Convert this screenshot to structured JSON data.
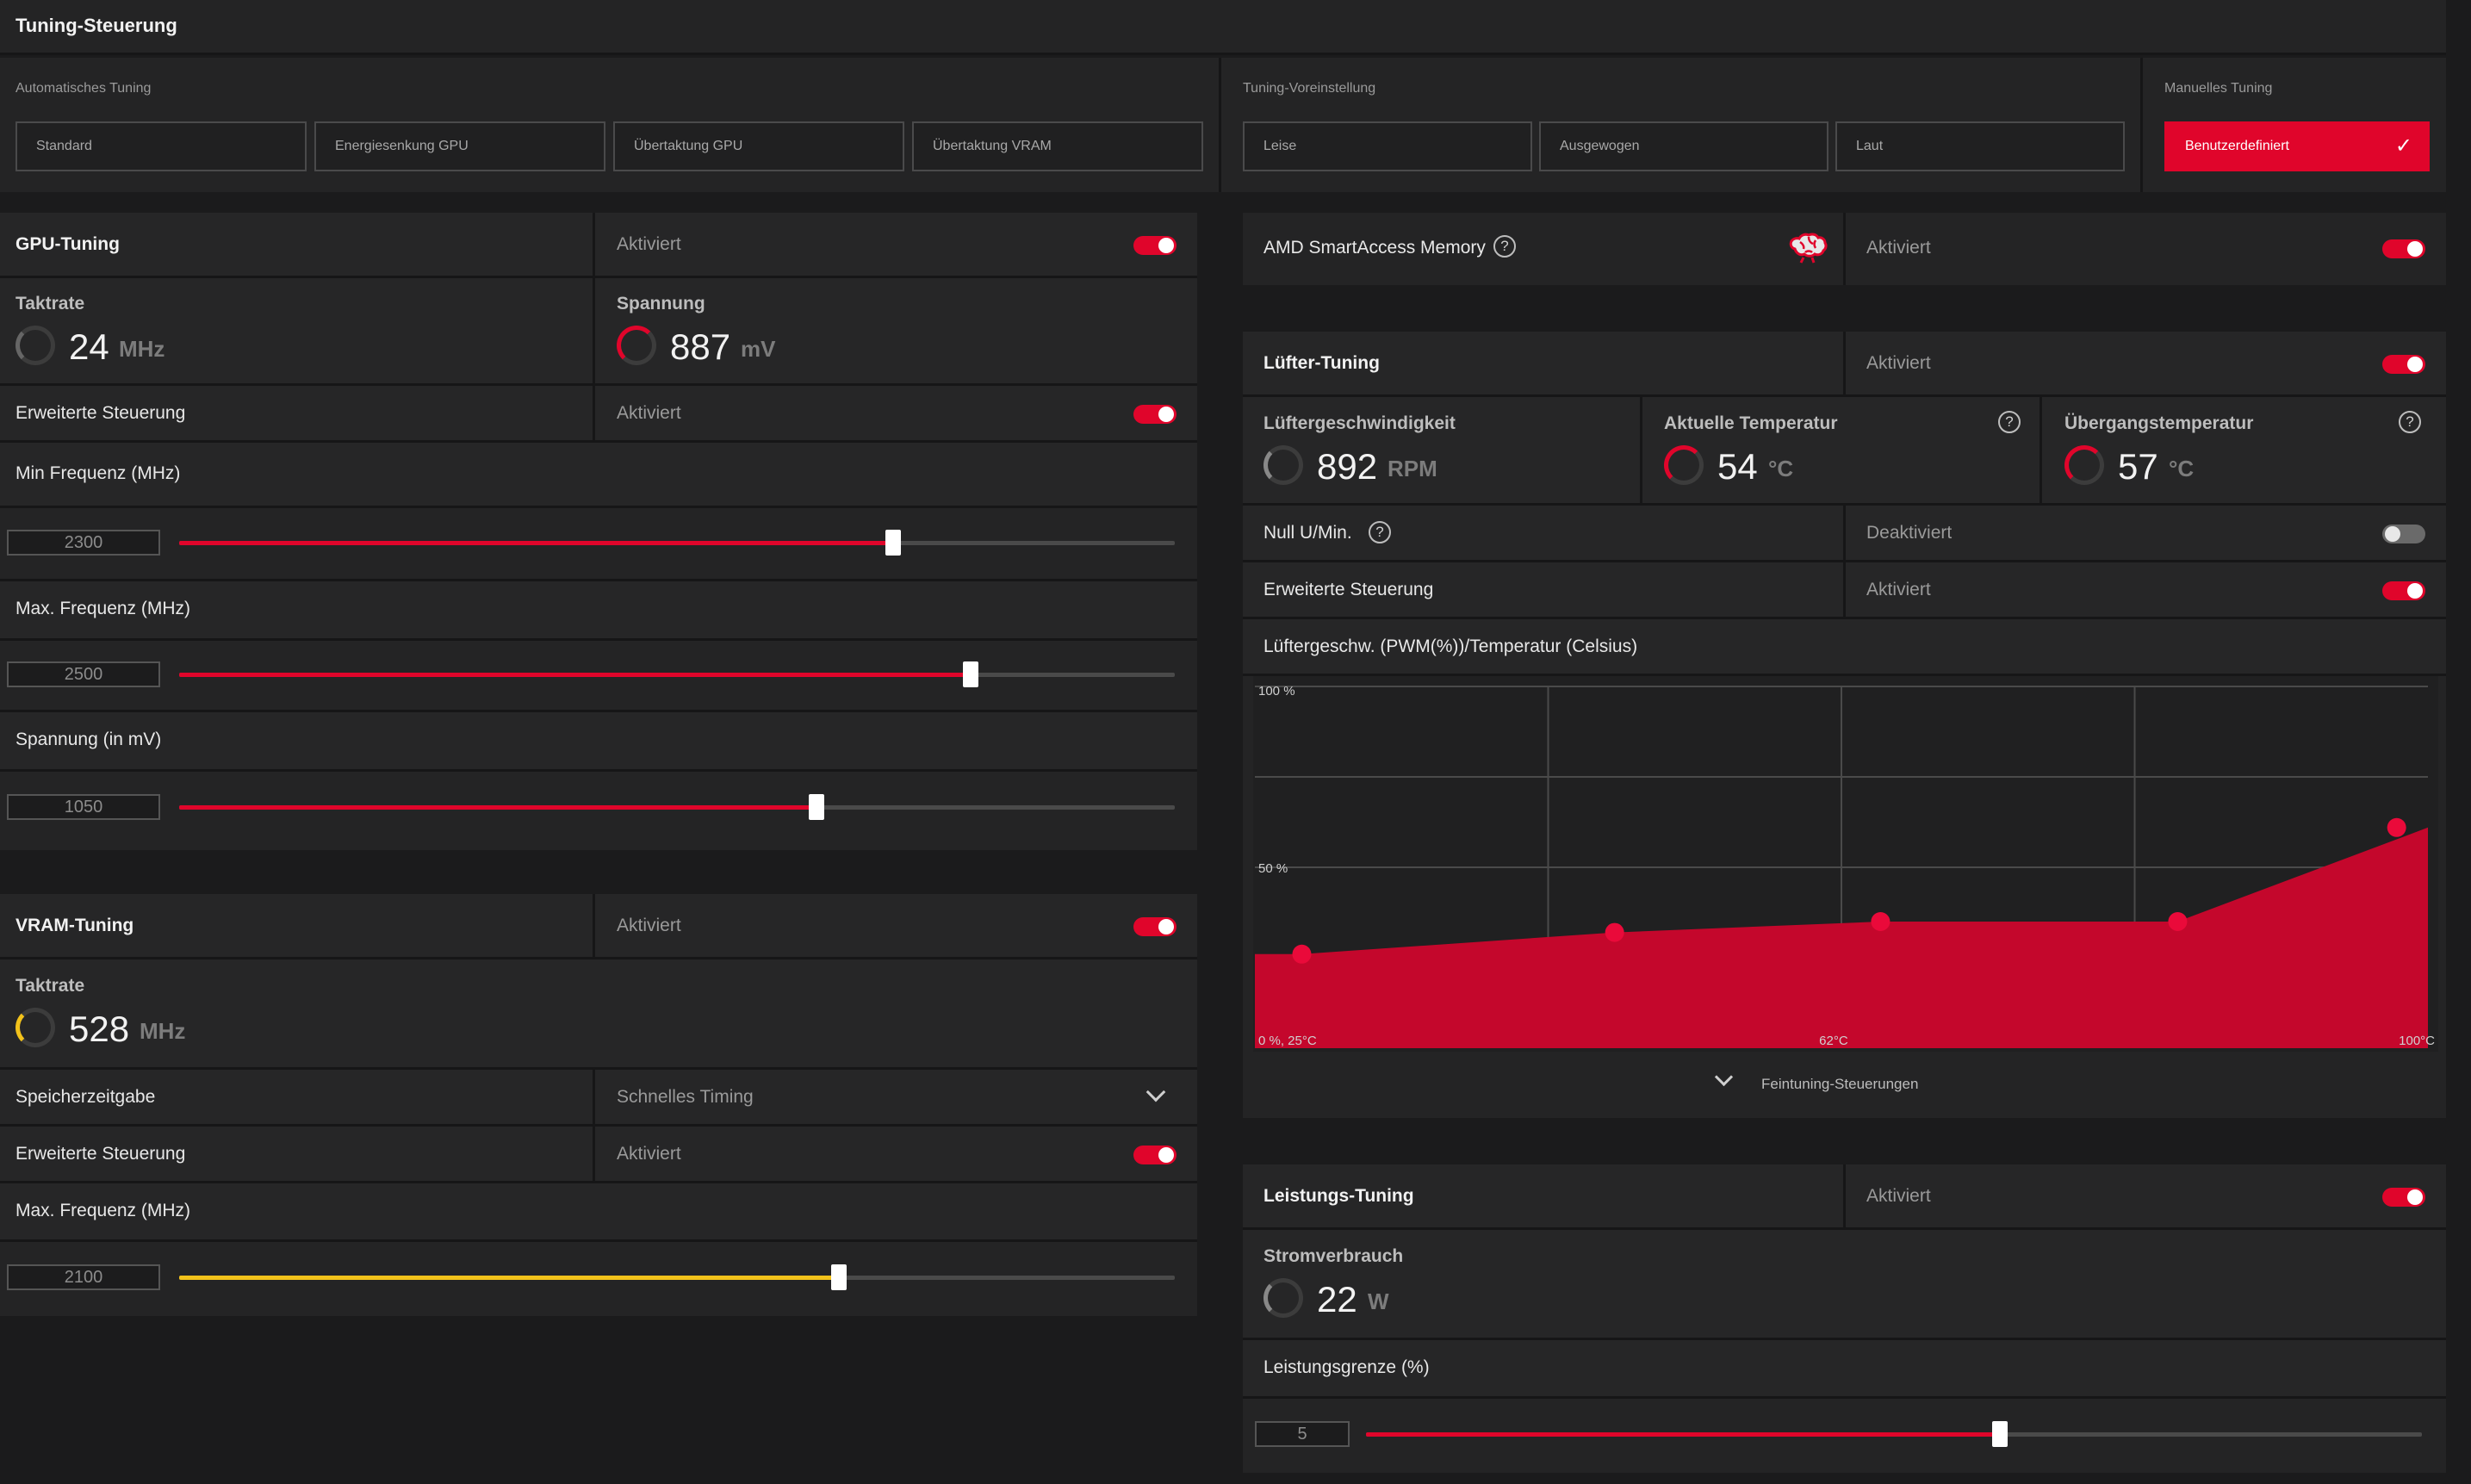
{
  "title": "Tuning-Steuerung",
  "presets": {
    "auto_header": "Automatisches Tuning",
    "auto": [
      "Standard",
      "Energiesenkung GPU",
      "Übertaktung GPU",
      "Übertaktung VRAM"
    ],
    "preset_header": "Tuning-Voreinstellung",
    "preset": [
      "Leise",
      "Ausgewogen",
      "Laut"
    ],
    "manual_header": "Manuelles Tuning",
    "manual": "Benutzerdefiniert"
  },
  "gpu": {
    "title": "GPU-Tuning",
    "status": "Aktiviert",
    "clock_label": "Taktrate",
    "clock_value": "24",
    "clock_unit": "MHz",
    "voltage_label": "Spannung",
    "voltage_value": "887",
    "voltage_unit": "mV",
    "advanced_label": "Erweiterte Steuerung",
    "advanced_status": "Aktiviert",
    "min_freq_label": "Min Frequenz (MHz)",
    "min_freq_value": "2300",
    "min_freq_fraction": 0.717,
    "max_freq_label": "Max. Frequenz (MHz)",
    "max_freq_value": "2500",
    "max_freq_fraction": 0.795,
    "volt_label": "Spannung (in mV)",
    "volt_value": "1050",
    "volt_fraction": 0.64
  },
  "vram": {
    "title": "VRAM-Tuning",
    "status": "Aktiviert",
    "clock_label": "Taktrate",
    "clock_value": "528",
    "clock_unit": "MHz",
    "timing_label": "Speicherzeitgabe",
    "timing_value": "Schnelles Timing",
    "advanced_label": "Erweiterte Steuerung",
    "advanced_status": "Aktiviert",
    "max_freq_label": "Max. Frequenz (MHz)",
    "max_freq_value": "2100",
    "max_freq_fraction": 0.663
  },
  "sam": {
    "label": "AMD SmartAccess Memory",
    "status": "Aktiviert"
  },
  "fan": {
    "title": "Lüfter-Tuning",
    "status": "Aktiviert",
    "speed_label": "Lüftergeschwindigkeit",
    "speed_value": "892",
    "speed_unit": "RPM",
    "temp_label": "Aktuelle Temperatur",
    "temp_value": "54",
    "temp_unit": "°C",
    "junction_label": "Übergangstemperatur",
    "junction_value": "57",
    "junction_unit": "°C",
    "zero_rpm_label": "Null U/Min.",
    "zero_rpm_status": "Deaktiviert",
    "advanced_label": "Erweiterte Steuerung",
    "advanced_status": "Aktiviert",
    "curve_label": "Lüftergeschw. (PWM(%))/Temperatur (Celsius)",
    "fine_tune_label": "Feintuning-Steuerungen"
  },
  "power": {
    "title": "Leistungs-Tuning",
    "status": "Aktiviert",
    "draw_label": "Stromverbrauch",
    "draw_value": "22",
    "draw_unit": "W",
    "limit_label": "Leistungsgrenze (%)",
    "limit_value": "5",
    "limit_fraction": 0.6
  },
  "chart_data": {
    "type": "area",
    "title": "Lüftergeschw. (PWM(%))/Temperatur (Celsius)",
    "ytick_labels": [
      "100 %",
      "50 %"
    ],
    "xtick_labels": [
      "0 %, 25°C",
      "62°C",
      "100°C"
    ],
    "xlim": [
      25,
      100
    ],
    "ylim": [
      0,
      100
    ],
    "grid": true,
    "series": [
      {
        "x": [
          25,
          28,
          48,
          65,
          84,
          100
        ],
        "y": [
          26,
          26,
          32,
          35,
          35,
          61
        ],
        "points_x": [
          28,
          48,
          65,
          84,
          98
        ],
        "points_y": [
          26,
          32,
          35,
          35,
          61
        ]
      }
    ],
    "colors": {
      "fill": "#c4072c",
      "point": "#ea0a3a",
      "grid": "#4a4a4a"
    }
  }
}
